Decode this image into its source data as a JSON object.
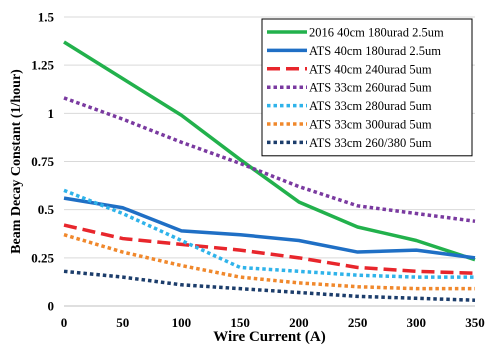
{
  "chart_data": {
    "type": "line",
    "title": "",
    "xlabel": "Wire Current (A)",
    "ylabel": "Beam Decay Constant (1/hour)",
    "x": [
      0,
      50,
      100,
      150,
      200,
      250,
      300,
      350
    ],
    "xlim": [
      0,
      350
    ],
    "ylim": [
      0,
      1.5
    ],
    "x_ticks": [
      "0",
      "50",
      "100",
      "150",
      "200",
      "250",
      "300",
      "350"
    ],
    "y_ticks": [
      "0",
      "0.25",
      "0.5",
      "0.75",
      "1",
      "1.25",
      "1.5"
    ],
    "grid": "horizontal",
    "legend_position": "top-right",
    "series": [
      {
        "name": "2016 40cm 180urad 2.5um",
        "color": "#22b14c",
        "style": "solid",
        "values": [
          1.37,
          1.18,
          0.99,
          0.76,
          0.54,
          0.41,
          0.34,
          0.24
        ]
      },
      {
        "name": "ATS 40cm 180urad 2.5um",
        "color": "#1f6fc5",
        "style": "solid",
        "values": [
          0.56,
          0.51,
          0.39,
          0.37,
          0.34,
          0.28,
          0.29,
          0.25
        ]
      },
      {
        "name": "ATS 40cm 240urad 5um",
        "color": "#e8262c",
        "style": "dash",
        "values": [
          0.42,
          0.35,
          0.32,
          0.29,
          0.25,
          0.2,
          0.18,
          0.17
        ]
      },
      {
        "name": "ATS 33cm 260urad 5um",
        "color": "#7a3aa0",
        "style": "dot",
        "values": [
          1.08,
          0.97,
          0.85,
          0.74,
          0.62,
          0.52,
          0.48,
          0.44
        ]
      },
      {
        "name": "ATS 33cm 280urad 5um",
        "color": "#2fb3ea",
        "style": "dot",
        "values": [
          0.6,
          0.48,
          0.34,
          0.2,
          0.18,
          0.16,
          0.15,
          0.15
        ]
      },
      {
        "name": "ATS 33cm 300urad 5um",
        "color": "#f0882c",
        "style": "dot",
        "values": [
          0.37,
          0.28,
          0.21,
          0.15,
          0.12,
          0.1,
          0.09,
          0.09
        ]
      },
      {
        "name": "ATS 33cm 260/380 5um",
        "color": "#1c3d6b",
        "style": "dot",
        "values": [
          0.18,
          0.15,
          0.11,
          0.09,
          0.07,
          0.05,
          0.04,
          0.03
        ]
      }
    ]
  }
}
